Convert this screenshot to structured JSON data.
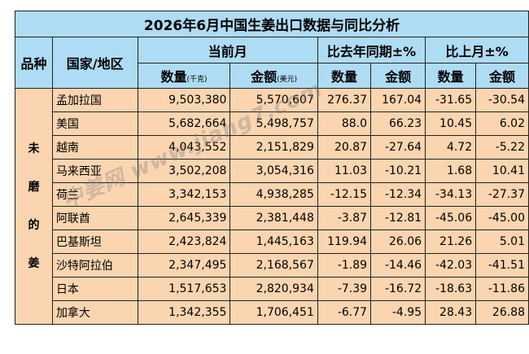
{
  "table": {
    "title": "2026年6月中国生姜出口数据与同比分析",
    "headers": {
      "variety": "品种",
      "country": "国家/地区",
      "current_month": "当前月",
      "yoy": "比去年同期±%",
      "mom": "比上月±%",
      "quantity": "数量",
      "quantity_unit": "(千克)",
      "amount": "金额",
      "amount_unit": "(美元)",
      "yoy_quantity": "数量",
      "yoy_amount": "金额",
      "mom_quantity": "数量",
      "mom_amount": "金额"
    },
    "variety_chars": [
      "未",
      "磨",
      "的",
      "姜"
    ],
    "rows": [
      {
        "country": "孟加拉国",
        "quantity": "9,503,380",
        "amount": "5,570,607",
        "yoy_q": "276.37",
        "yoy_a": "167.04",
        "mom_q": "-31.65",
        "mom_a": "-30.54"
      },
      {
        "country": "美国",
        "quantity": "5,682,664",
        "amount": "5,498,757",
        "yoy_q": "88.0",
        "yoy_a": "66.23",
        "mom_q": "10.45",
        "mom_a": "6.02"
      },
      {
        "country": "越南",
        "quantity": "4,043,552",
        "amount": "2,151,829",
        "yoy_q": "20.87",
        "yoy_a": "-27.64",
        "mom_q": "4.72",
        "mom_a": "-5.22"
      },
      {
        "country": "马来西亚",
        "quantity": "3,502,208",
        "amount": "3,054,316",
        "yoy_q": "11.03",
        "yoy_a": "-10.21",
        "mom_q": "1.68",
        "mom_a": "10.41"
      },
      {
        "country": "荷兰",
        "quantity": "3,342,153",
        "amount": "4,938,285",
        "yoy_q": "-12.15",
        "yoy_a": "-12.34",
        "mom_q": "-34.13",
        "mom_a": "-27.37"
      },
      {
        "country": "阿联酋",
        "quantity": "2,645,339",
        "amount": "2,381,448",
        "yoy_q": "-3.87",
        "yoy_a": "-12.81",
        "mom_q": "-45.06",
        "mom_a": "-45.00"
      },
      {
        "country": "巴基斯坦",
        "quantity": "2,423,824",
        "amount": "1,445,163",
        "yoy_q": "119.94",
        "yoy_a": "26.06",
        "mom_q": "21.26",
        "mom_a": "5.01"
      },
      {
        "country": "沙特阿拉伯",
        "quantity": "2,347,495",
        "amount": "2,168,567",
        "yoy_q": "-1.89",
        "yoy_a": "-14.46",
        "mom_q": "-42.03",
        "mom_a": "-41.51"
      },
      {
        "country": "日本",
        "quantity": "1,517,653",
        "amount": "2,820,934",
        "yoy_q": "-7.39",
        "yoy_a": "-16.72",
        "mom_q": "-18.63",
        "mom_a": "-11.86"
      },
      {
        "country": "加拿大",
        "quantity": "1,342,355",
        "amount": "1,706,451",
        "yoy_q": "-6.77",
        "yoy_a": "-4.95",
        "mom_q": "28.43",
        "mom_a": "26.88"
      }
    ]
  },
  "watermark": "中姜网 www.jiang7.com",
  "colors": {
    "header_bg": "#aedcf4",
    "row_bg": "#fbd5b0",
    "border": "#222222"
  }
}
